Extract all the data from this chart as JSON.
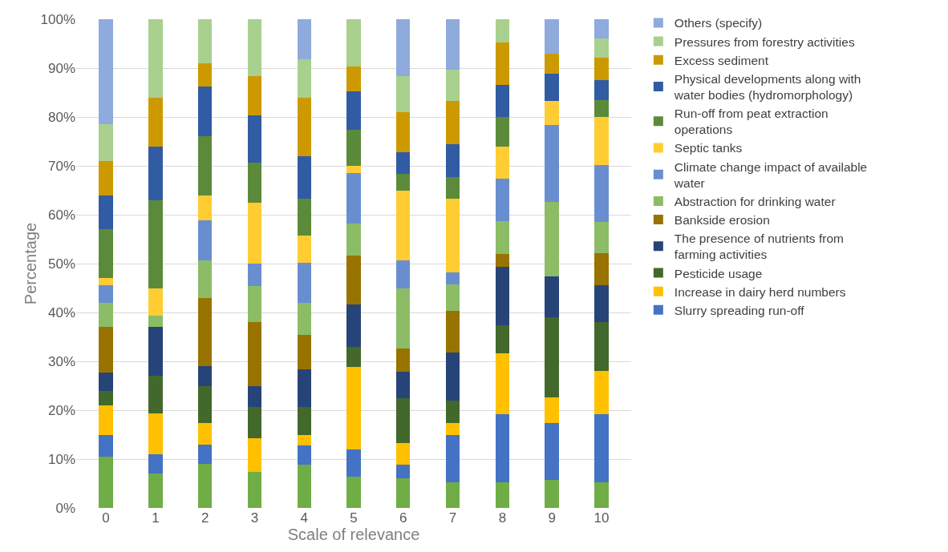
{
  "chart_data": {
    "type": "bar",
    "stacked": true,
    "xlabel": "Scale of relevance",
    "ylabel": "Percentage",
    "categories": [
      "0",
      "1",
      "2",
      "3",
      "4",
      "5",
      "6",
      "7",
      "8",
      "9",
      "10"
    ],
    "ylim": [
      0,
      100
    ],
    "yticks": [
      {
        "value": 0,
        "label": "0%"
      },
      {
        "value": 10,
        "label": "10%"
      },
      {
        "value": 20,
        "label": "20%"
      },
      {
        "value": 30,
        "label": "30%"
      },
      {
        "value": 40,
        "label": "40%"
      },
      {
        "value": 50,
        "label": "50%"
      },
      {
        "value": 60,
        "label": "60%"
      },
      {
        "value": 70,
        "label": "70%"
      },
      {
        "value": 80,
        "label": "80%"
      },
      {
        "value": 90,
        "label": "90%"
      },
      {
        "value": 100,
        "label": "100%"
      }
    ],
    "grid": "y",
    "legend": "right",
    "series": [
      {
        "color": "#70ad47",
        "values": [
          10.5,
          7,
          9,
          7.4,
          8.8,
          6.4,
          6,
          5.3,
          5.3,
          5.7,
          5.3
        ]
      },
      {
        "name": "Slurry spreading run-off",
        "color": "#4472c4",
        "values": [
          4.5,
          4,
          4,
          0,
          4,
          5.6,
          2.8,
          9.7,
          13.9,
          11.6,
          13.9
        ]
      },
      {
        "name": "Increase in dairy herd numbers",
        "color": "#ffc000",
        "values": [
          6,
          8.3,
          4.3,
          6.9,
          2.2,
          16.8,
          4.4,
          2.4,
          12.4,
          5.3,
          8.8
        ]
      },
      {
        "name": "Pesticide usage",
        "color": "#43682b",
        "values": [
          3,
          7.7,
          7.7,
          6.4,
          5.7,
          4.2,
          9.2,
          4.6,
          5.8,
          16.4,
          10
        ]
      },
      {
        "name": "The presence of nutrients from farming activities",
        "color": "#264478",
        "values": [
          3.7,
          10,
          4,
          4.3,
          7.7,
          8.7,
          5.4,
          9.8,
          11.9,
          8.3,
          7.6
        ]
      },
      {
        "name": "Bankside erosion",
        "color": "#997300",
        "values": [
          9.3,
          0,
          14,
          13,
          7,
          9.9,
          4.8,
          8.5,
          2.7,
          0,
          6.6
        ]
      },
      {
        "name": "Abstraction for drinking water",
        "color": "#8cbd66",
        "values": [
          5,
          2.3,
          7.6,
          7.4,
          6.6,
          6.6,
          12.4,
          5.4,
          6.7,
          15.4,
          6.4
        ]
      },
      {
        "name": "Climate change impact of available water",
        "color": "#698ed0",
        "values": [
          3.6,
          0,
          8.2,
          4.6,
          8.2,
          10.4,
          5.6,
          2.5,
          8.6,
          15.7,
          11.6
        ]
      },
      {
        "name": "Septic tanks",
        "color": "#ffcd33",
        "values": [
          1.4,
          5.7,
          5.2,
          12.4,
          5.6,
          1.4,
          14.4,
          15,
          6.7,
          4.8,
          9.8
        ]
      },
      {
        "name": "Run-off from peat extraction operations",
        "color": "#5b8b3a",
        "values": [
          10,
          18,
          12,
          8.3,
          7.4,
          7.3,
          3.3,
          4.5,
          6,
          0,
          3.5
        ]
      },
      {
        "name": "Physical developments along with water bodies (hydromorphology)",
        "color": "#315ba3",
        "values": [
          7,
          11,
          10.3,
          9.7,
          8.8,
          7.9,
          4.5,
          6.7,
          6.6,
          5.6,
          4.1
        ]
      },
      {
        "name": "Excess sediment",
        "color": "#cc9a00",
        "values": [
          7,
          10,
          4.7,
          8,
          12,
          5.1,
          8.2,
          8.8,
          8.7,
          4.2,
          4.6
        ]
      },
      {
        "name": "Pressures from forestry activities",
        "color": "#a9d08e",
        "values": [
          7.5,
          16,
          9,
          11.6,
          7.8,
          9.7,
          7.3,
          6.4,
          4.7,
          0,
          3.8
        ]
      },
      {
        "name": "Others (specify)",
        "color": "#8faadc",
        "values": [
          21.5,
          0,
          0,
          0,
          8.2,
          0,
          11.7,
          10.4,
          0,
          7,
          4
        ]
      }
    ]
  }
}
